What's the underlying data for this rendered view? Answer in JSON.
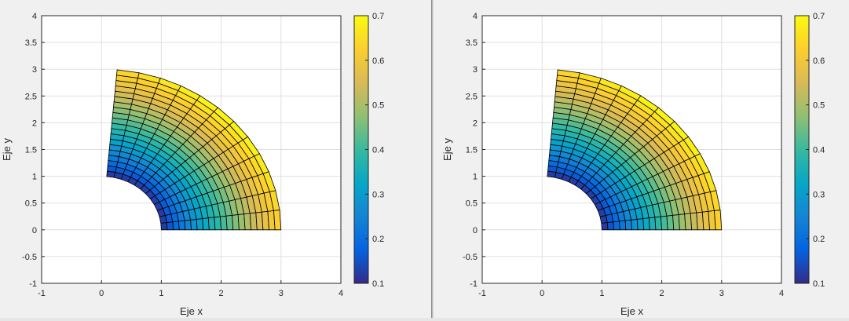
{
  "status_text": "",
  "colors": {
    "figure_background": "#f0f0f0",
    "axes_background": "#ffffff",
    "grid": "#dfdfdf",
    "axis": "#262626",
    "mesh_edge": "#000000"
  },
  "colormap": {
    "name": "parula",
    "stops": [
      "#352a87",
      "#0363e1",
      "#1485d4",
      "#06a7c6",
      "#38b99e",
      "#92bf73",
      "#d9ba56",
      "#fcce2e",
      "#f9fb0e"
    ]
  },
  "chart_data": [
    {
      "type": "heatmap",
      "title": "",
      "xlabel": "Eje x",
      "ylabel": "Eje y",
      "xlim": [
        -1,
        4
      ],
      "ylim": [
        -1,
        4
      ],
      "xticks": [
        "-1",
        "0",
        "1",
        "2",
        "3",
        "4"
      ],
      "yticks": [
        "-1",
        "-0.5",
        "0",
        "0.5",
        "1",
        "1.5",
        "2",
        "2.5",
        "3",
        "3.5",
        "4"
      ],
      "grid": true,
      "colorbar": {
        "clim": [
          0.1,
          0.7
        ],
        "ticks": [
          "0.1",
          "0.2",
          "0.3",
          "0.4",
          "0.5",
          "0.6",
          "0.7"
        ],
        "placement": "right"
      },
      "mesh": {
        "inner_radius": 1,
        "outer_radius": 3,
        "theta_start_deg": 0,
        "theta_end_deg": 85,
        "radial_divisions": 20,
        "angular_divisions": 12
      }
    },
    {
      "type": "heatmap",
      "title": "",
      "xlabel": "Eje x",
      "ylabel": "Eje y",
      "xlim": [
        -1,
        4
      ],
      "ylim": [
        -1,
        4
      ],
      "xticks": [
        "-1",
        "0",
        "1",
        "2",
        "3",
        "4"
      ],
      "yticks": [
        "-1",
        "-0.5",
        "0",
        "0.5",
        "1",
        "1.5",
        "2",
        "2.5",
        "3",
        "3.5",
        "4"
      ],
      "grid": true,
      "colorbar": {
        "clim": [
          0.1,
          0.7
        ],
        "ticks": [
          "0.1",
          "0.2",
          "0.3",
          "0.4",
          "0.5",
          "0.6",
          "0.7"
        ],
        "placement": "right"
      },
      "mesh": {
        "inner_radius": 1,
        "outer_radius": 3,
        "theta_start_deg": 0,
        "theta_end_deg": 85,
        "radial_divisions": 20,
        "angular_divisions": 12
      }
    }
  ]
}
